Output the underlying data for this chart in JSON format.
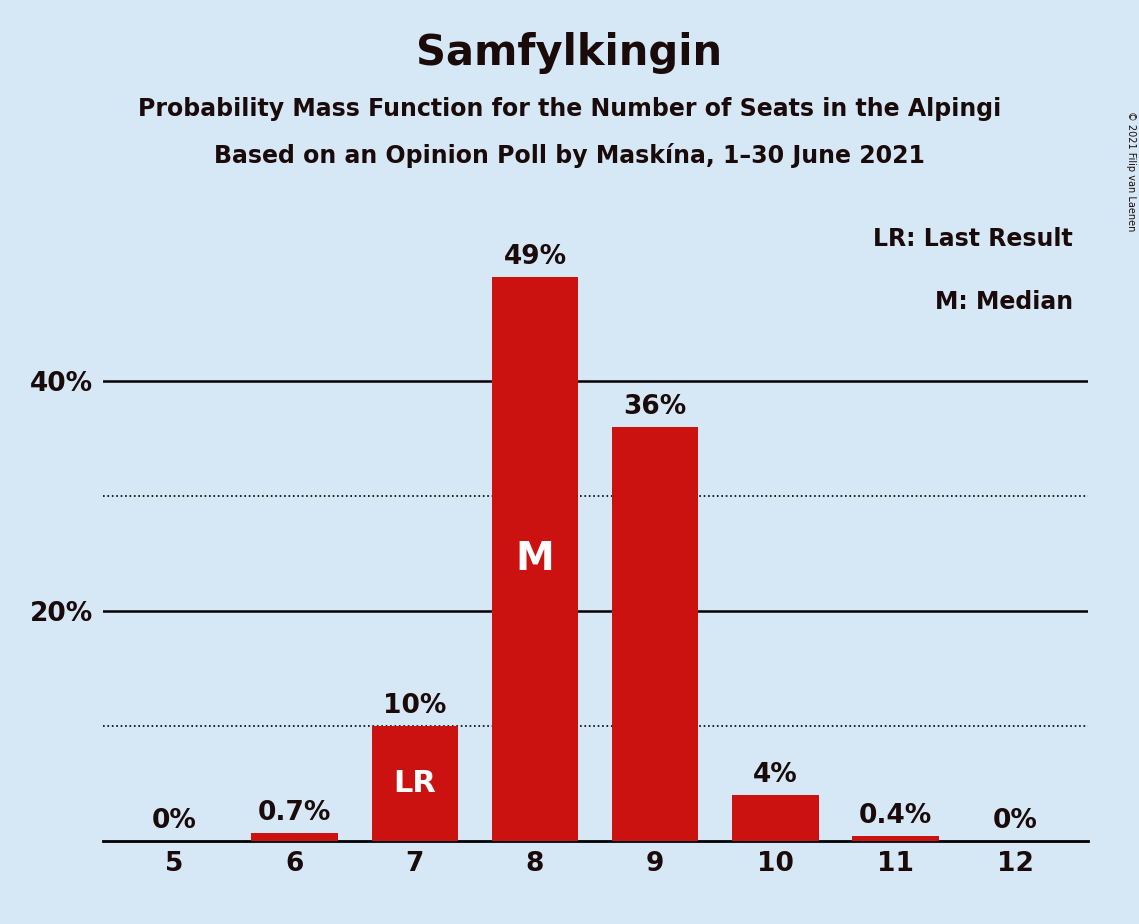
{
  "title": "Samfylkingin",
  "subtitle1": "Probability Mass Function for the Number of Seats in the Alpingi",
  "subtitle2": "Based on an Opinion Poll by Maskína, 1–30 June 2021",
  "copyright": "© 2021 Filip van Laenen",
  "legend_lr": "LR: Last Result",
  "legend_m": "M: Median",
  "seats": [
    5,
    6,
    7,
    8,
    9,
    10,
    11,
    12
  ],
  "probabilities": [
    0.0,
    0.7,
    10.0,
    49.0,
    36.0,
    4.0,
    0.4,
    0.0
  ],
  "bar_labels": [
    "0%",
    "0.7%",
    "10%",
    "49%",
    "36%",
    "4%",
    "0.4%",
    "0%"
  ],
  "bar_color": "#cc1111",
  "background_color": "#d6e8f5",
  "label_color_outside": "#1a0a0a",
  "label_color_inside": "#ffffff",
  "lr_seat": 7,
  "median_seat": 8,
  "ylim": [
    0,
    55
  ],
  "ytick_labeled": [
    20,
    40
  ],
  "ytick_labeled_labels": [
    "20%",
    "40%"
  ],
  "grid_solid": [
    20,
    40
  ],
  "grid_dotted": [
    10,
    30
  ],
  "title_fontsize": 30,
  "subtitle_fontsize": 17,
  "label_fontsize": 19,
  "tick_fontsize": 19,
  "legend_fontsize": 17,
  "bar_width": 0.72
}
